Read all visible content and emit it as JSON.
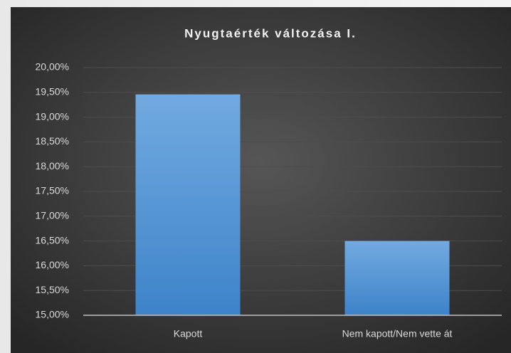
{
  "chart_data": {
    "type": "bar",
    "title": "Nyugtaérték változása I.",
    "categories": [
      "Kapott",
      "Nem kapott/Nem vette át"
    ],
    "values": [
      19.46,
      16.5
    ],
    "color": "#5b9bd5",
    "ylim": [
      15,
      20
    ],
    "yticks": [
      {
        "value": 15,
        "label": "15,00%"
      },
      {
        "value": 15.5,
        "label": "15,50%"
      },
      {
        "value": 16,
        "label": "16,00%"
      },
      {
        "value": 16.5,
        "label": "16,50%"
      },
      {
        "value": 17,
        "label": "17,00%"
      },
      {
        "value": 17.5,
        "label": "17,50%"
      },
      {
        "value": 18,
        "label": "18,00%"
      },
      {
        "value": 18.5,
        "label": "18,50%"
      },
      {
        "value": 19,
        "label": "19,00%"
      },
      {
        "value": 19.5,
        "label": "19,50%"
      },
      {
        "value": 20,
        "label": "20,00%"
      }
    ],
    "grid": true
  }
}
